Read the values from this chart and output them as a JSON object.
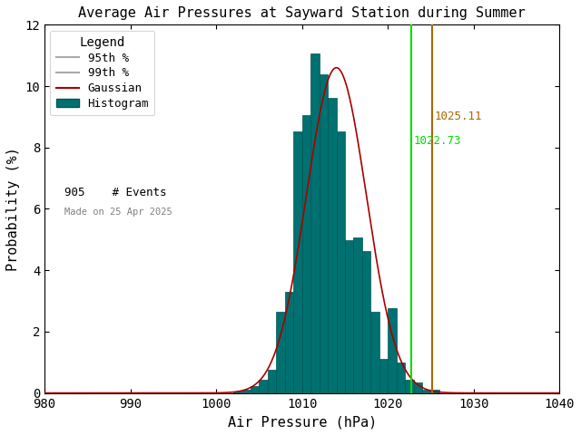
{
  "title": "Average Air Pressures at Sayward Station during Summer",
  "xlabel": "Air Pressure (hPa)",
  "ylabel": "Probability (%)",
  "xlim": [
    980,
    1040
  ],
  "ylim": [
    0,
    12
  ],
  "xticks": [
    980,
    990,
    1000,
    1010,
    1020,
    1030,
    1040
  ],
  "yticks": [
    0,
    2,
    4,
    6,
    8,
    10,
    12
  ],
  "bin_edges": [
    1002,
    1003,
    1004,
    1005,
    1006,
    1007,
    1008,
    1009,
    1010,
    1011,
    1012,
    1013,
    1014,
    1015,
    1016,
    1017,
    1018,
    1019,
    1020,
    1021,
    1022,
    1023,
    1024,
    1025,
    1026,
    1027
  ],
  "bin_probs": [
    0.04,
    0.11,
    0.22,
    0.44,
    0.77,
    2.65,
    3.31,
    8.51,
    9.06,
    11.05,
    10.39,
    9.61,
    8.51,
    4.97,
    5.08,
    4.64,
    2.65,
    1.1,
    2.76,
    0.99,
    0.44,
    0.33,
    0.11,
    0.11,
    0.0,
    0.0
  ],
  "gauss_mean": 1014.0,
  "gauss_std": 3.5,
  "gauss_scale": 10.6,
  "percentile_95": 1022.73,
  "percentile_99": 1025.11,
  "n_events": "905",
  "made_on": "Made on 25 Apr 2025",
  "hist_color": "#007070",
  "hist_edge_color": "#005555",
  "gauss_color": "#aa0000",
  "p95_color": "#00dd00",
  "p99_color": "#aa6600",
  "title_color": "#000000",
  "background_color": "#ffffff",
  "legend_title": "Legend",
  "annotation_p99": "1025.11",
  "annotation_p95": "1022.73",
  "font_family": "monospace",
  "legend_line_color": "#aaaaaa"
}
